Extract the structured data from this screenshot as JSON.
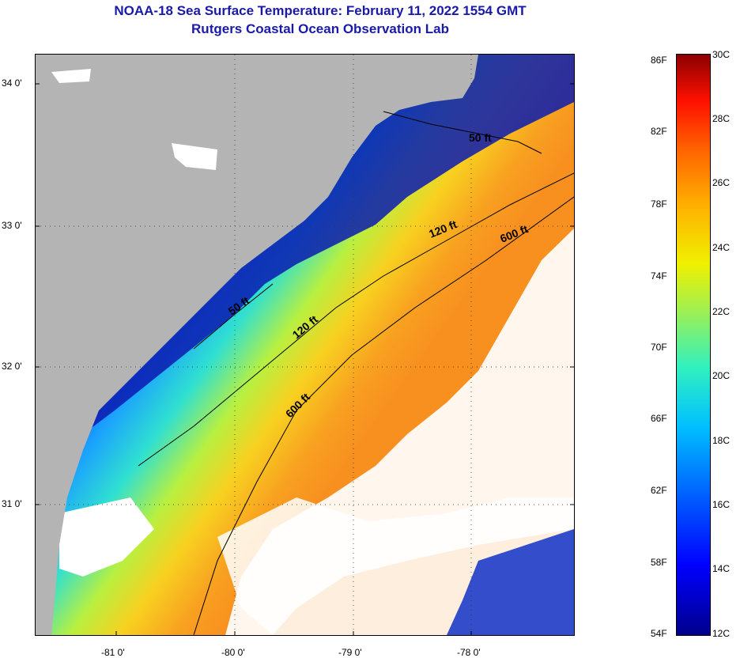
{
  "title": {
    "line1": "NOAA-18 Sea Surface Temperature:  February 11, 2022 1554 GMT",
    "line2": "Rutgers Coastal Ocean Observation Lab"
  },
  "map": {
    "lat_labels": [
      "34 0'",
      "33 0'",
      "32 0'",
      "31 0'"
    ],
    "lon_labels": [
      "-81 0'",
      "-80 0'",
      "-79 0'",
      "-78 0'"
    ],
    "contours": {
      "c50a": "50 ft",
      "c50b": "50 ft",
      "c120a": "120 ft",
      "c120b": "120 ft",
      "c600a": "600 ft",
      "c600b": "600 ft"
    },
    "colors": {
      "land": "#b4b4b4",
      "cloud": "#ffffff"
    }
  },
  "colorbar": {
    "f_labels": [
      "86F",
      "82F",
      "78F",
      "74F",
      "70F",
      "66F",
      "62F",
      "58F",
      "54F"
    ],
    "c_labels": [
      "30C",
      "28C",
      "26C",
      "24C",
      "22C",
      "20C",
      "18C",
      "16C",
      "14C",
      "12C"
    ]
  }
}
